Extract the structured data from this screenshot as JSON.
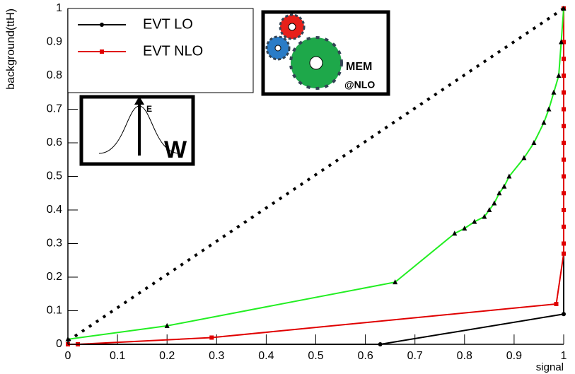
{
  "chart_data": {
    "type": "line",
    "x_label": "signal",
    "y_label": "background(ttH)",
    "xlim": [
      0,
      1
    ],
    "ylim": [
      0,
      1
    ],
    "xticks": [
      0,
      0.1,
      0.2,
      0.3,
      0.4,
      0.5,
      0.6,
      0.7,
      0.8,
      0.9,
      1
    ],
    "yticks": [
      0,
      0.1,
      0.2,
      0.3,
      0.4,
      0.5,
      0.6,
      0.7,
      0.8,
      0.9,
      1
    ],
    "legend": "upper left",
    "annotations": [
      "E",
      "W",
      "MEM",
      "@NLO"
    ],
    "series": [
      {
        "name": "EVT LO",
        "color": "#000000",
        "marker": "circle",
        "x": [
          0,
          0.02,
          0.63,
          1,
          1
        ],
        "values": [
          0,
          0,
          0,
          0.09,
          1
        ]
      },
      {
        "name": "EVT NLO",
        "color": "#e00000",
        "marker": "square",
        "x": [
          0,
          0.02,
          0.29,
          0.985,
          1,
          1,
          1,
          1,
          1,
          1,
          1,
          1,
          1,
          1,
          1,
          1,
          1,
          1,
          1
        ],
        "values": [
          0,
          0,
          0.02,
          0.12,
          0.27,
          0.3,
          0.35,
          0.4,
          0.45,
          0.5,
          0.55,
          0.6,
          0.65,
          0.7,
          0.75,
          0.8,
          0.85,
          0.9,
          1
        ]
      },
      {
        "color": "#22ee22",
        "marker": "triangle",
        "x": [
          0,
          0.2,
          0.66,
          0.78,
          0.8,
          0.82,
          0.84,
          0.85,
          0.86,
          0.87,
          0.88,
          0.89,
          0.92,
          0.94,
          0.96,
          0.97,
          0.98,
          0.99,
          0.995,
          1
        ],
        "values": [
          0.015,
          0.055,
          0.185,
          0.33,
          0.345,
          0.365,
          0.38,
          0.4,
          0.42,
          0.45,
          0.47,
          0.5,
          0.555,
          0.6,
          0.66,
          0.7,
          0.75,
          0.8,
          0.9,
          1
        ]
      },
      {
        "color": "#000000",
        "marker": "none",
        "dash": "dotted",
        "x": [
          0,
          1
        ],
        "values": [
          0.01,
          1
        ]
      }
    ]
  }
}
